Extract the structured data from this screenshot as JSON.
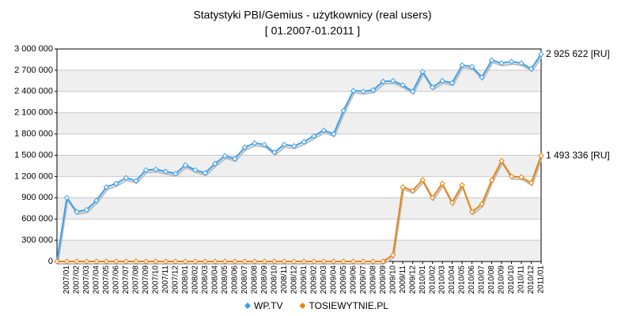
{
  "chart_data": {
    "type": "line",
    "title": "Statystyki PBI/Gemius - użytkownicy (real users)",
    "subtitle": "[ 01.2007-01.2011 ]",
    "categories": [
      null,
      "2007/01",
      "2007/02",
      "2007/03",
      "2007/04",
      "2007/05",
      "2007/06",
      "2007/07",
      "2007/08",
      "2007/09",
      "2007/10",
      "2007/11",
      "2007/12",
      "2008/01",
      "2008/02",
      "2008/03",
      "2008/04",
      "2008/05",
      "2008/06",
      "2008/07",
      "2008/08",
      "2008/09",
      "2008/10",
      "2008/11",
      "2008/12",
      "2009/01",
      "2009/02",
      "2009/03",
      "2009/04",
      "2009/05",
      "2009/06",
      "2009/07",
      "2009/08",
      "2009/09",
      "2009/10",
      "2009/11",
      "2009/12",
      "2010/01",
      "2010/02",
      "2010/03",
      "2010/04",
      "2010/05",
      "2010/06",
      "2010/07",
      "2010/08",
      "2010/09",
      "2010/10",
      "2010/11",
      "2010/12",
      "2011/01"
    ],
    "series": [
      {
        "name": "WP.TV",
        "color": "#3a9ef0",
        "values": [
          0,
          900000,
          700000,
          730000,
          860000,
          1050000,
          1100000,
          1180000,
          1140000,
          1290000,
          1300000,
          1270000,
          1240000,
          1360000,
          1290000,
          1250000,
          1380000,
          1490000,
          1450000,
          1610000,
          1670000,
          1650000,
          1540000,
          1650000,
          1630000,
          1690000,
          1770000,
          1850000,
          1800000,
          2130000,
          2410000,
          2400000,
          2420000,
          2540000,
          2550000,
          2490000,
          2400000,
          2680000,
          2460000,
          2550000,
          2520000,
          2770000,
          2750000,
          2600000,
          2840000,
          2800000,
          2820000,
          2800000,
          2720000,
          2925622
        ],
        "value_labels": [
          null,
          null,
          null,
          null,
          null,
          null,
          null,
          null,
          null,
          null,
          null,
          null,
          null,
          null,
          null,
          null,
          null,
          null,
          null,
          null,
          null,
          null,
          null,
          null,
          null,
          null,
          null,
          null,
          null,
          null,
          null,
          null,
          null,
          null,
          null,
          null,
          null,
          null,
          null,
          null,
          null,
          null,
          null,
          null,
          null,
          null,
          null,
          null,
          null,
          "2 925 622 [RU]"
        ]
      },
      {
        "name": "TOSIEWYTNIE.PL",
        "color": "#e8820c",
        "values": [
          0,
          0,
          0,
          0,
          0,
          0,
          0,
          0,
          0,
          0,
          0,
          0,
          0,
          0,
          0,
          0,
          0,
          0,
          0,
          0,
          0,
          0,
          0,
          0,
          0,
          0,
          0,
          0,
          0,
          0,
          0,
          0,
          0,
          0,
          90000,
          1050000,
          1000000,
          1150000,
          900000,
          1100000,
          830000,
          1080000,
          700000,
          810000,
          1150000,
          1420000,
          1200000,
          1190000,
          1110000,
          1493336
        ],
        "value_labels": [
          null,
          null,
          null,
          null,
          null,
          null,
          null,
          null,
          null,
          null,
          null,
          null,
          null,
          null,
          null,
          null,
          null,
          null,
          null,
          null,
          null,
          null,
          null,
          null,
          null,
          null,
          null,
          null,
          null,
          null,
          null,
          null,
          null,
          null,
          null,
          null,
          null,
          null,
          null,
          null,
          null,
          null,
          null,
          null,
          null,
          null,
          null,
          null,
          null,
          "1 493 336 [RU]"
        ]
      }
    ],
    "ylim": [
      0,
      3000000
    ],
    "yticks": [
      0,
      {
        "value": 300000,
        "label": "300 000"
      },
      {
        "value": 600000,
        "label": "600 000"
      },
      {
        "value": 900000,
        "label": "900 000"
      },
      {
        "value": 1200000,
        "label": "1 200 000"
      },
      {
        "value": 1500000,
        "label": "1 500 000"
      },
      {
        "value": 1800000,
        "label": "1 800 000"
      },
      {
        "value": 2100000,
        "label": "2 100 000"
      },
      {
        "value": 2400000,
        "label": "2 400 000"
      },
      {
        "value": 2700000,
        "label": "2 700 000"
      },
      {
        "value": 3000000,
        "label": "3 000 000"
      }
    ],
    "grid": true,
    "legend": "bottom"
  }
}
